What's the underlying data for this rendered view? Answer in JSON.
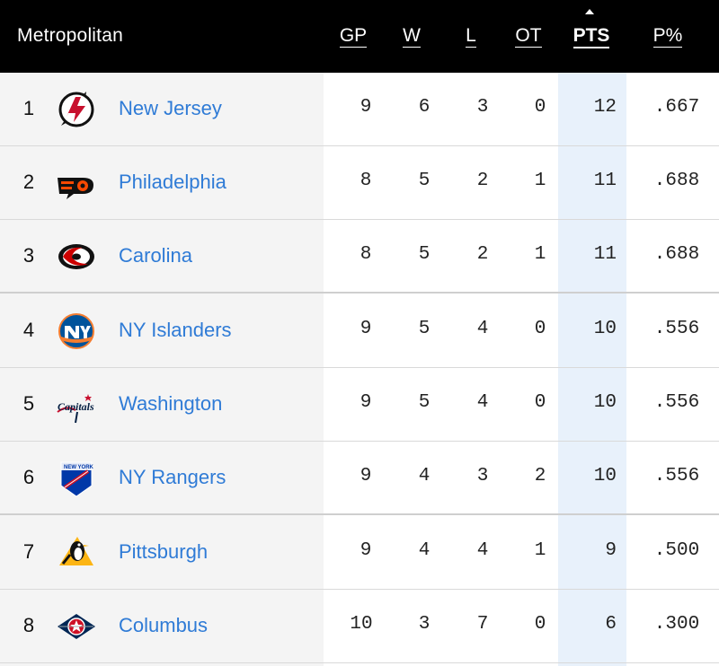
{
  "division": "Metropolitan",
  "columns": {
    "gp": "GP",
    "w": "W",
    "l": "L",
    "ot": "OT",
    "pts": "PTS",
    "pct": "P%"
  },
  "sorted_by": "PTS",
  "teams": [
    {
      "rank": "1",
      "name": "New Jersey",
      "logo": "devils-logo-icon",
      "gp": "9",
      "w": "6",
      "l": "3",
      "ot": "0",
      "pts": "12",
      "pct": ".667"
    },
    {
      "rank": "2",
      "name": "Philadelphia",
      "logo": "flyers-logo-icon",
      "gp": "8",
      "w": "5",
      "l": "2",
      "ot": "1",
      "pts": "11",
      "pct": ".688"
    },
    {
      "rank": "3",
      "name": "Carolina",
      "logo": "hurricanes-logo-icon",
      "gp": "8",
      "w": "5",
      "l": "2",
      "ot": "1",
      "pts": "11",
      "pct": ".688"
    },
    {
      "rank": "4",
      "name": "NY Islanders",
      "logo": "islanders-logo-icon",
      "gp": "9",
      "w": "5",
      "l": "4",
      "ot": "0",
      "pts": "10",
      "pct": ".556"
    },
    {
      "rank": "5",
      "name": "Washington",
      "logo": "capitals-logo-icon",
      "gp": "9",
      "w": "5",
      "l": "4",
      "ot": "0",
      "pts": "10",
      "pct": ".556"
    },
    {
      "rank": "6",
      "name": "NY Rangers",
      "logo": "rangers-logo-icon",
      "gp": "9",
      "w": "4",
      "l": "3",
      "ot": "2",
      "pts": "10",
      "pct": ".556"
    },
    {
      "rank": "7",
      "name": "Pittsburgh",
      "logo": "penguins-logo-icon",
      "gp": "9",
      "w": "4",
      "l": "4",
      "ot": "1",
      "pts": "9",
      "pct": ".500"
    },
    {
      "rank": "8",
      "name": "Columbus",
      "logo": "blue-jackets-logo-icon",
      "gp": "10",
      "w": "3",
      "l": "7",
      "ot": "0",
      "pts": "6",
      "pct": ".300"
    }
  ],
  "colors": {
    "header_bg": "#000000",
    "team_link": "#2f7bd6",
    "pts_highlight": "#e8f1fb",
    "team_column_bg": "#f4f4f4"
  }
}
